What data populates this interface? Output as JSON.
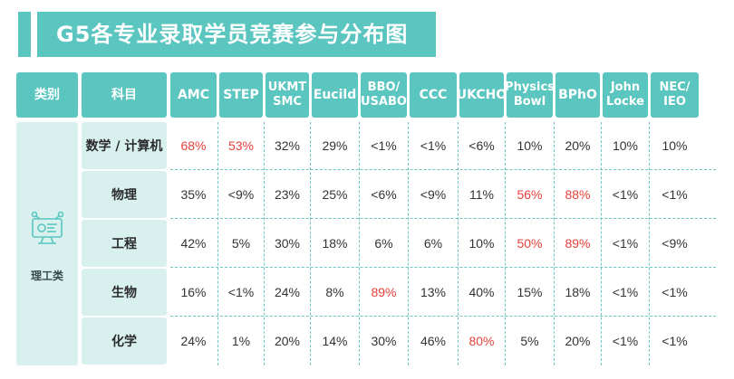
{
  "title": "G5各专业录取学员竞赛参与分布图",
  "header": {
    "category": "类别",
    "subject": "科目",
    "competitions": [
      "AMC",
      "STEP",
      "UKMT\nSMC",
      "Eucild",
      "BBO/\nUSABO",
      "CCC",
      "UKCHO",
      "Physics\nBowl",
      "BPhO",
      "John\nLocke",
      "NEC/\nIEO"
    ]
  },
  "category": {
    "label": "理工类",
    "icon": "science-icon"
  },
  "rows": [
    {
      "subject": "数学 / 计算机",
      "values": [
        "68%",
        "53%",
        "32%",
        "29%",
        "<1%",
        "<1%",
        "<6%",
        "10%",
        "20%",
        "10%",
        "10%"
      ],
      "highlight": [
        0,
        1
      ]
    },
    {
      "subject": "物理",
      "values": [
        "35%",
        "<9%",
        "23%",
        "25%",
        "<6%",
        "<9%",
        "11%",
        "56%",
        "88%",
        "<1%",
        "<1%"
      ],
      "highlight": [
        7,
        8
      ]
    },
    {
      "subject": "工程",
      "values": [
        "42%",
        "5%",
        "30%",
        "18%",
        "6%",
        "6%",
        "10%",
        "50%",
        "89%",
        "<1%",
        "<9%"
      ],
      "highlight": [
        7,
        8
      ]
    },
    {
      "subject": "生物",
      "values": [
        "16%",
        "<1%",
        "24%",
        "8%",
        "89%",
        "13%",
        "40%",
        "15%",
        "18%",
        "<1%",
        "<1%"
      ],
      "highlight": [
        4
      ]
    },
    {
      "subject": "化学",
      "values": [
        "24%",
        "1%",
        "20%",
        "14%",
        "30%",
        "46%",
        "80%",
        "5%",
        "20%",
        "<1%",
        "<1%"
      ],
      "highlight": [
        6
      ]
    }
  ],
  "colors": {
    "accent": "#5bc5c0",
    "light": "#d8f1ef",
    "highlight": "#e8413b",
    "text": "#333333"
  }
}
